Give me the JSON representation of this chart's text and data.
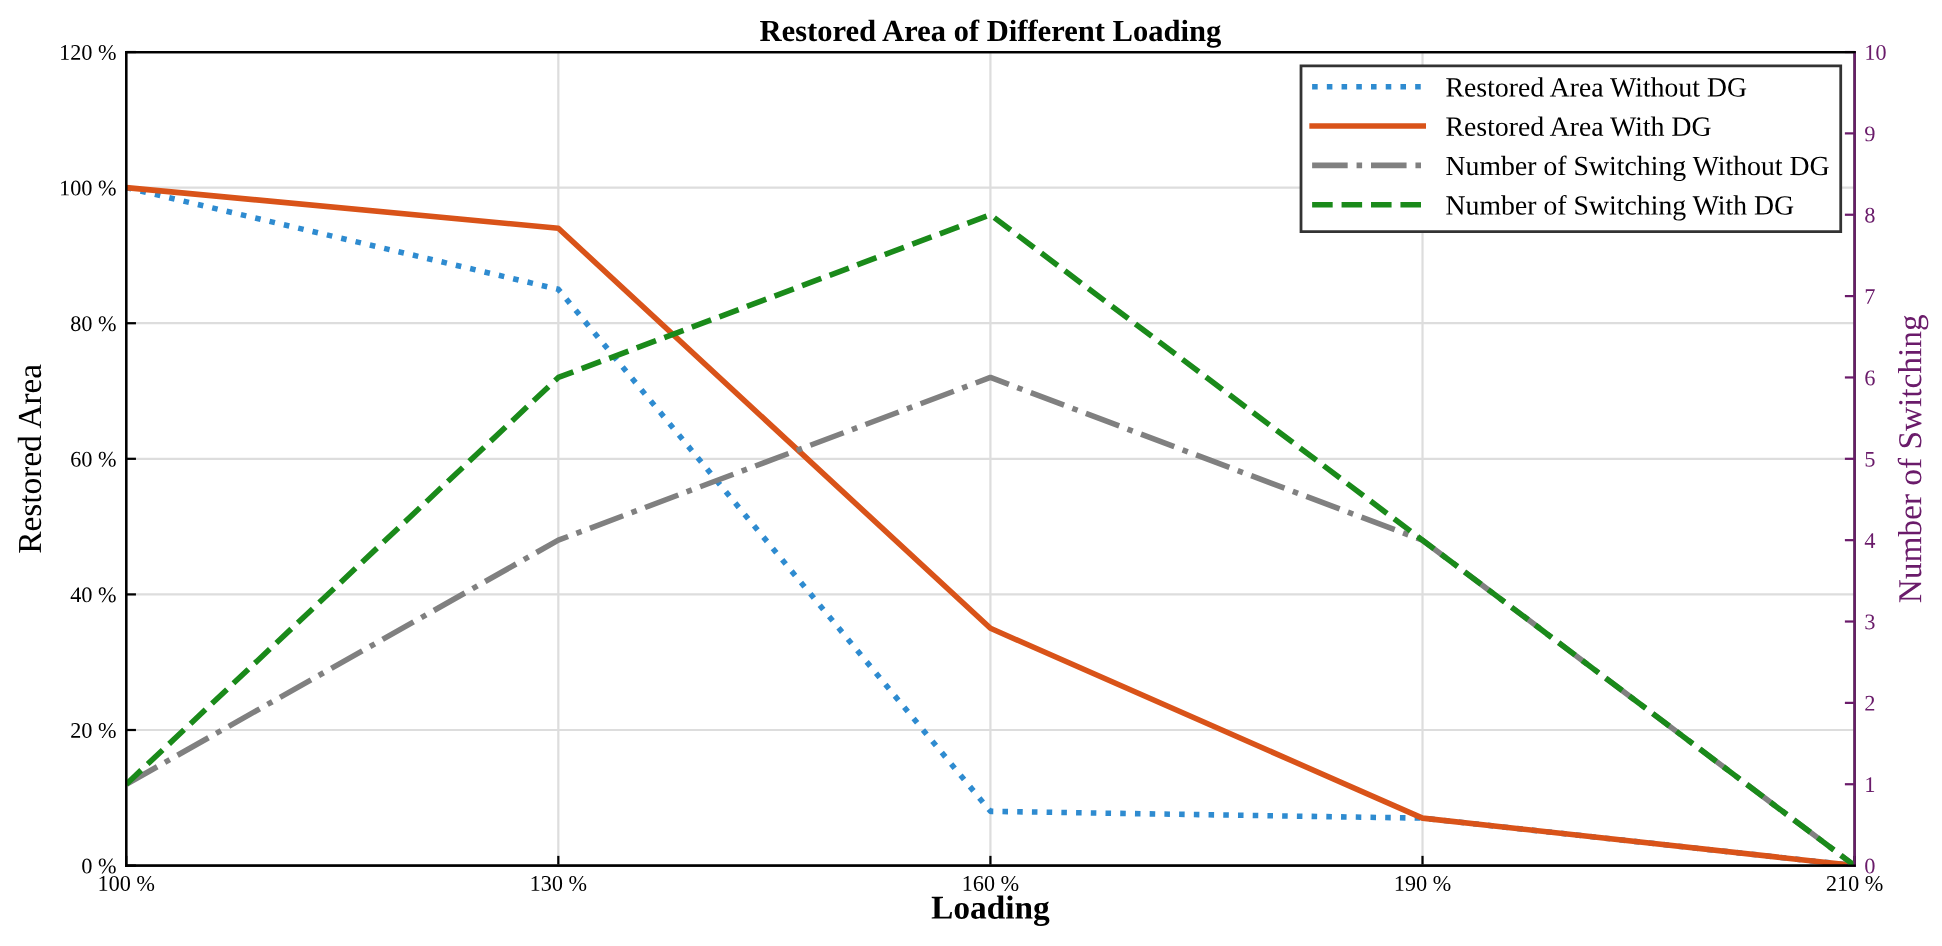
{
  "chart_data": {
    "type": "line",
    "title": "Restored Area of Different Loading",
    "xlabel": "Loading",
    "ylabel": "Restored Area",
    "y2label": "Number of Switching",
    "categories": [
      "100 %",
      "130 %",
      "160 %",
      "190 %",
      "210 %"
    ],
    "series": [
      {
        "name": "Restored Area Without DG",
        "color": "#2e8bd0",
        "values": [
          100,
          85,
          8,
          7,
          0
        ],
        "line_style": "dotted"
      },
      {
        "name": "Restored Area With DG",
        "color": "#d95319",
        "values": [
          100,
          94,
          35,
          7,
          0
        ],
        "line_style": "solid"
      },
      {
        "name": "Number of Switching Without DG",
        "color": "#808080",
        "values": [
          1,
          4,
          6,
          4,
          0
        ],
        "line_style": "dashdot",
        "axis": "y2"
      },
      {
        "name": "Number of Switching With DG",
        "color": "#1a8a1a",
        "values": [
          1,
          6,
          8,
          4,
          0
        ],
        "line_style": "dashed",
        "axis": "y2"
      }
    ],
    "ylim": [
      0,
      120
    ],
    "yticks": [
      {
        "value": 0,
        "label": "0 %"
      },
      {
        "value": 20,
        "label": "20 %"
      },
      {
        "value": 40,
        "label": "40 %"
      },
      {
        "value": 60,
        "label": "60 %"
      },
      {
        "value": 80,
        "label": "80 %"
      },
      {
        "value": 100,
        "label": "100 %"
      },
      {
        "value": 120,
        "label": "120 %"
      }
    ],
    "y2lim": [
      0,
      10
    ],
    "y2ticks": [
      0,
      1,
      2,
      3,
      4,
      5,
      6,
      7,
      8,
      9,
      10
    ],
    "grid": true,
    "legend": "top right"
  }
}
